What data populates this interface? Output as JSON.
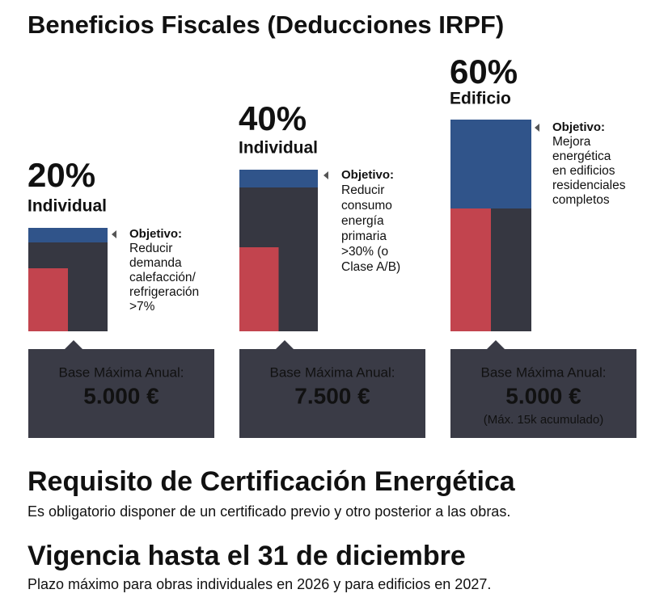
{
  "title": "Beneficios Fiscales (Deducciones IRPF)",
  "cards": [
    {
      "percent": "20%",
      "scope": "Individual",
      "objective_label": "Objetivo:",
      "objective_lines": [
        "Reducir",
        "demanda",
        "calefacción/",
        "refrigeración",
        ">7%"
      ],
      "base_label": "Base Máxima Anual:",
      "amount": "5.000 €"
    },
    {
      "percent": "40%",
      "scope": "Individual",
      "objective_label": "Objetivo:",
      "objective_lines": [
        "Reducir",
        "consumo",
        "energía",
        "primaria",
        ">30% (o",
        "Clase A/B)"
      ],
      "base_label": "Base Máxima Anual:",
      "amount": "7.500 €"
    },
    {
      "percent": "60%",
      "scope": "Edificio",
      "objective_label": "Objetivo:",
      "objective_lines": [
        "Mejora",
        "energética",
        "en edificios",
        "residenciales",
        "completos"
      ],
      "base_label": "Base Máxima Anual:",
      "amount": "5.000 €",
      "note": "(Máx. 15k acumulado)"
    }
  ],
  "sections": [
    {
      "heading": "Requisito de Certificación Energética",
      "text": "Es obligatorio disponer de un certificado previo y otro posterior a las obras."
    },
    {
      "heading": "Vigencia hasta el 31 de diciembre",
      "text": "Plazo máximo para obras individuales en 2026 y para edificios en 2027."
    }
  ]
}
